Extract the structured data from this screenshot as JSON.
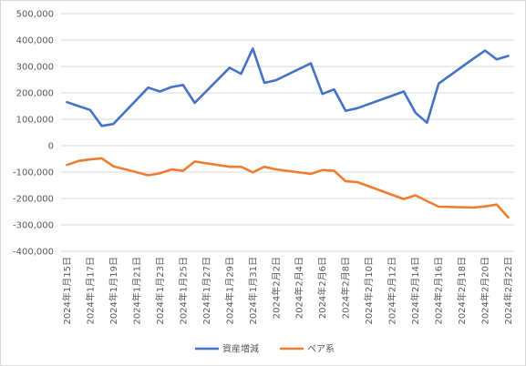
{
  "chart_data": {
    "type": "line",
    "title": "",
    "xlabel": "",
    "ylabel": "",
    "ylim": [
      -400000,
      500000
    ],
    "yticks": [
      500000,
      400000,
      300000,
      200000,
      100000,
      0,
      -100000,
      -200000,
      -300000,
      -400000
    ],
    "ytick_labels": [
      "500,000",
      "400,000",
      "300,000",
      "200,000",
      "100,000",
      "0",
      "-100,000",
      "-200,000",
      "-300,000",
      "-400,000"
    ],
    "grid": true,
    "legend_position": "bottom",
    "x_tick_labels": [
      "2024年1月15日",
      "2024年1月17日",
      "2024年1月19日",
      "2024年1月21日",
      "2024年1月23日",
      "2024年1月25日",
      "2024年1月27日",
      "2024年1月29日",
      "2024年1月31日",
      "2024年2月2日",
      "2024年2月4日",
      "2024年2月6日",
      "2024年2月8日",
      "2024年2月10日",
      "2024年2月12日",
      "2024年2月14日",
      "2024年2月16日",
      "2024年2月18日",
      "2024年2月20日",
      "2024年2月22日"
    ],
    "x": [
      "2024-01-15",
      "2024-01-16",
      "2024-01-17",
      "2024-01-18",
      "2024-01-19",
      "2024-01-22",
      "2024-01-23",
      "2024-01-24",
      "2024-01-25",
      "2024-01-26",
      "2024-01-29",
      "2024-01-30",
      "2024-01-31",
      "2024-02-01",
      "2024-02-02",
      "2024-02-05",
      "2024-02-06",
      "2024-02-07",
      "2024-02-08",
      "2024-02-09",
      "2024-02-13",
      "2024-02-14",
      "2024-02-15",
      "2024-02-16",
      "2024-02-19",
      "2024-02-20",
      "2024-02-21",
      "2024-02-22"
    ],
    "series": [
      {
        "name": "資産増減",
        "color": "#4472C4",
        "values": [
          165000,
          150000,
          135000,
          75000,
          82000,
          220000,
          205000,
          222000,
          230000,
          162000,
          295000,
          272000,
          368000,
          238000,
          248000,
          312000,
          196000,
          213000,
          132000,
          142000,
          205000,
          125000,
          87000,
          235000,
          330000,
          360000,
          327000,
          340000
        ]
      },
      {
        "name": "ペア系",
        "color": "#ED7D31",
        "values": [
          -73000,
          -58000,
          -52000,
          -48000,
          -78000,
          -112000,
          -105000,
          -90000,
          -95000,
          -60000,
          -80000,
          -80000,
          -101000,
          -80000,
          -90000,
          -107000,
          -92000,
          -95000,
          -135000,
          -138000,
          -202000,
          -188000,
          -210000,
          -231000,
          -234000,
          -230000,
          -223000,
          -272000
        ]
      }
    ]
  }
}
